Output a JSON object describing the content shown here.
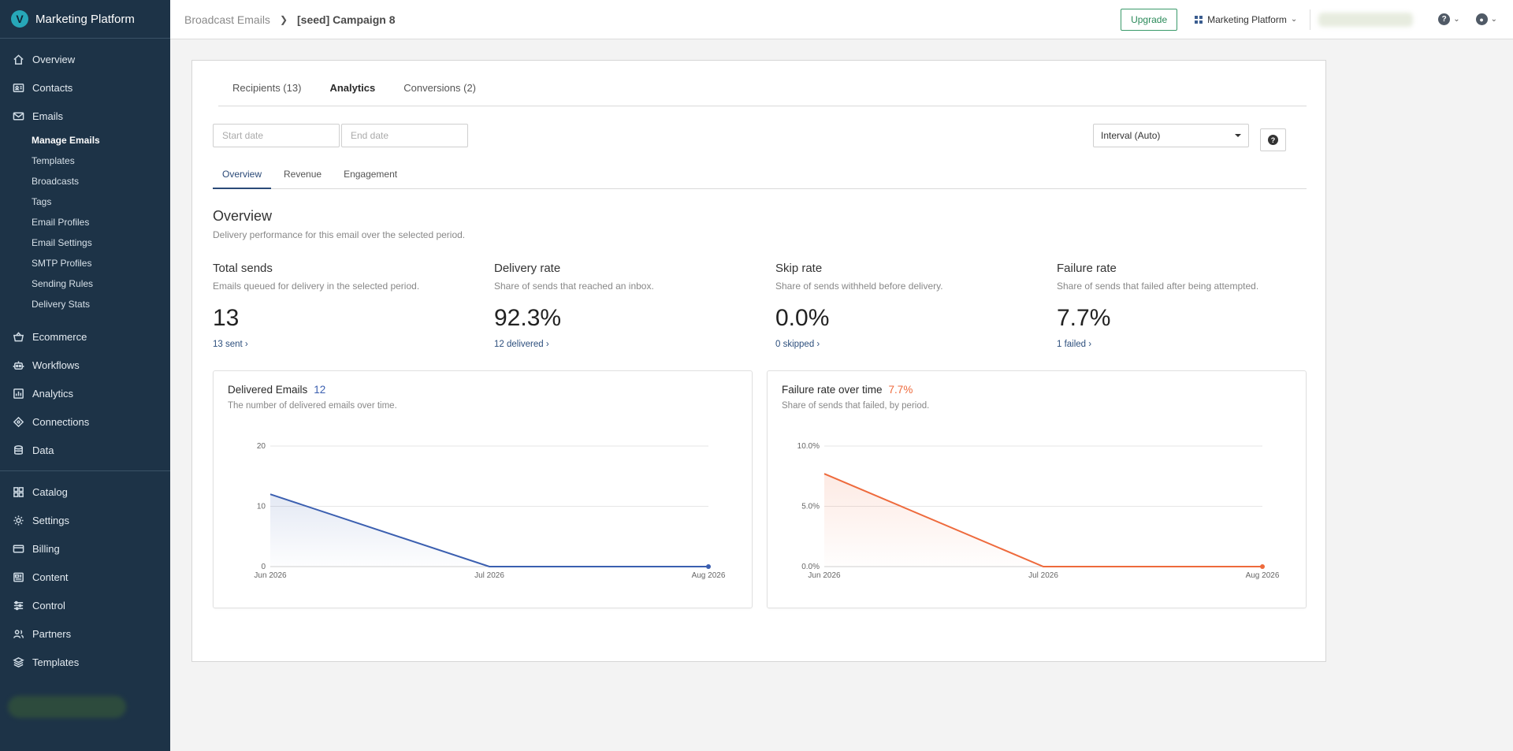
{
  "brand": {
    "name": "Marketing Platform",
    "logo_letter": "V"
  },
  "sidebar": {
    "items_top": [
      {
        "label": "Overview",
        "icon": "home-icon"
      },
      {
        "label": "Contacts",
        "icon": "contacts-icon"
      },
      {
        "label": "Emails",
        "icon": "mail-icon"
      }
    ],
    "email_sub": [
      {
        "label": "Manage Emails",
        "active": true
      },
      {
        "label": "Templates"
      },
      {
        "label": "Broadcasts"
      },
      {
        "label": "Tags"
      },
      {
        "label": "Email Profiles"
      },
      {
        "label": "Email Settings"
      },
      {
        "label": "SMTP Profiles"
      },
      {
        "label": "Sending Rules"
      },
      {
        "label": "Delivery Stats"
      }
    ],
    "items_mid": [
      {
        "label": "Ecommerce",
        "icon": "basket-icon"
      },
      {
        "label": "Workflows",
        "icon": "robot-icon"
      },
      {
        "label": "Analytics",
        "icon": "bar-chart-icon"
      },
      {
        "label": "Connections",
        "icon": "connections-icon"
      },
      {
        "label": "Data",
        "icon": "database-icon"
      }
    ],
    "items_bottom": [
      {
        "label": "Catalog",
        "icon": "grid-icon"
      },
      {
        "label": "Settings",
        "icon": "gear-icon"
      },
      {
        "label": "Billing",
        "icon": "card-icon"
      },
      {
        "label": "Content",
        "icon": "content-icon"
      },
      {
        "label": "Control",
        "icon": "sliders-icon"
      },
      {
        "label": "Partners",
        "icon": "partners-icon"
      },
      {
        "label": "Templates",
        "icon": "layers-icon"
      }
    ]
  },
  "topbar": {
    "breadcrumb_parent": "Broadcast Emails",
    "breadcrumb_current": "[seed] Campaign 8",
    "upgrade_label": "Upgrade",
    "platform_label": "Marketing Platform"
  },
  "tabs": [
    {
      "label": "Recipients (13)"
    },
    {
      "label": "Analytics",
      "active": true
    },
    {
      "label": "Conversions (2)"
    }
  ],
  "filters": {
    "start_placeholder": "Start date",
    "end_placeholder": "End date",
    "interval_label": "Interval (Auto)"
  },
  "subtabs": [
    {
      "label": "Overview",
      "active": true
    },
    {
      "label": "Revenue"
    },
    {
      "label": "Engagement"
    }
  ],
  "overview": {
    "title": "Overview",
    "description": "Delivery performance for this email over the selected period."
  },
  "metrics": [
    {
      "label": "Total sends",
      "desc": "Emails queued for delivery in the selected period.",
      "value": "13",
      "link": "13 sent ›"
    },
    {
      "label": "Delivery rate",
      "desc": "Share of sends that reached an inbox.",
      "value": "92.3%",
      "link": "12 delivered ›"
    },
    {
      "label": "Skip rate",
      "desc": "Share of sends withheld before delivery.",
      "value": "0.0%",
      "link": "0 skipped ›"
    },
    {
      "label": "Failure rate",
      "desc": "Share of sends that failed after being attempted.",
      "value": "7.7%",
      "link": "1 failed ›"
    }
  ],
  "colors": {
    "accent_blue": "#3b5fb0",
    "accent_orange": "#ee6a3c",
    "sidebar_bg": "#1d3347",
    "upgrade_green": "#2b8a5a"
  },
  "chart_data": [
    {
      "type": "area",
      "title": "Delivered Emails",
      "headline_value": "12",
      "subtitle": "The number of delivered emails over time.",
      "categories": [
        "Jun 2026",
        "Jul 2026",
        "Aug 2026"
      ],
      "values": [
        12,
        0,
        0
      ],
      "ylim": [
        0,
        20
      ],
      "yticks": [
        "0",
        "10",
        "20"
      ],
      "grid": true
    },
    {
      "type": "area",
      "title": "Failure rate over time",
      "headline_value": "7.7%",
      "subtitle": "Share of sends that failed, by period.",
      "categories": [
        "Jun 2026",
        "Jul 2026",
        "Aug 2026"
      ],
      "values": [
        7.7,
        0,
        0
      ],
      "ylim": [
        0,
        10
      ],
      "yticks": [
        "0.0%",
        "5.0%",
        "10.0%"
      ],
      "grid": true
    }
  ]
}
